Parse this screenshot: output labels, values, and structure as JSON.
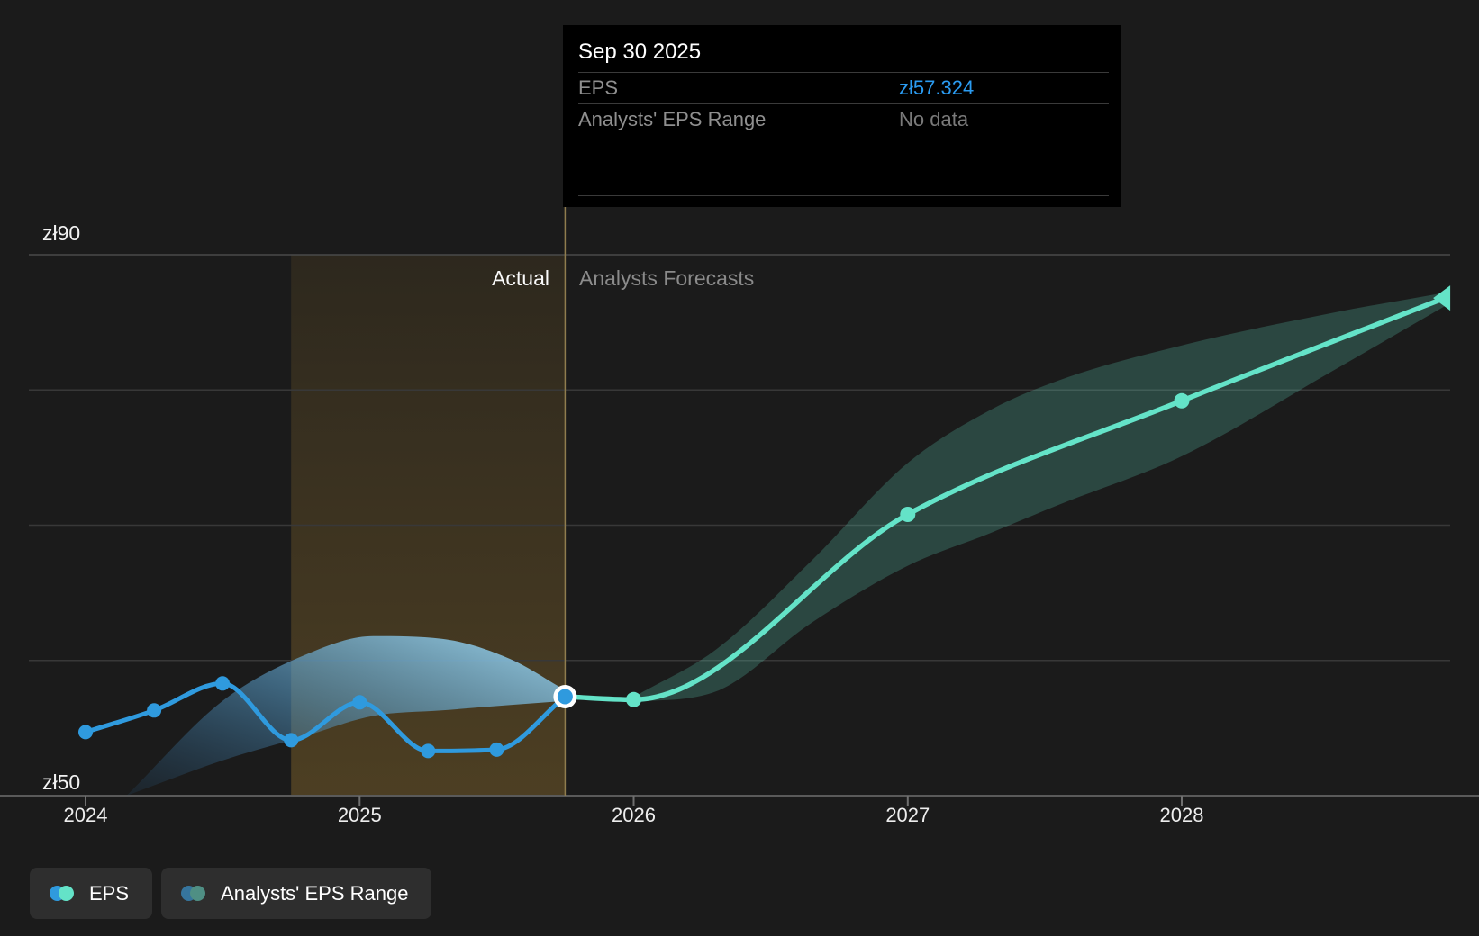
{
  "tooltip": {
    "title": "Sep 30 2025",
    "rows": [
      {
        "label": "EPS",
        "value": "zł57.324",
        "value_color": "#2b9cf2"
      },
      {
        "label": "Analysts' EPS Range",
        "value": "No data",
        "value_color": "#7a7a7a"
      }
    ]
  },
  "phase": {
    "actual": "Actual",
    "forecast": "Analysts Forecasts"
  },
  "y_axis": {
    "top_label": "zł90",
    "bottom_label": "zł50"
  },
  "legend": [
    {
      "label": "EPS",
      "swatch_colors": [
        "#2f9ade",
        "#64e3c8"
      ]
    },
    {
      "label": "Analysts' EPS Range",
      "swatch_colors": [
        "#36759d",
        "#4f8f84"
      ]
    }
  ],
  "colors": {
    "background": "#1b1b1b",
    "grid": "#383838",
    "grid_top": "#4a4a4a",
    "axis_line": "#5a5a5a",
    "tick": "#6f6f6f",
    "divider": "#8f7c4e",
    "highlight_top": "rgba(205,155,55,0.10)",
    "highlight_bottom": "rgba(205,155,55,0.28)",
    "actual_blue": "#2f9ade",
    "forecast_mint": "#64e3c8",
    "band_teal": "rgba(100,226,200,0.22)",
    "band_blue_start": "rgba(40,100,150,0.12)",
    "band_blue_mid": "rgba(90,160,205,0.55)",
    "band_blue_end": "rgba(150,210,240,0.88)"
  },
  "chart_data": {
    "type": "line",
    "title": "EPS actual vs analysts forecast",
    "currency_symbol": "zł",
    "x_ticks": [
      2024,
      2025,
      2026,
      2027,
      2028
    ],
    "x_range": [
      2023.8,
      2028.98
    ],
    "ylim": [
      50,
      90
    ],
    "y_gridline_values": [
      90,
      80,
      70,
      60,
      50
    ],
    "divider_x": 2025.75,
    "highlight_span": [
      2024.75,
      2025.75
    ],
    "selected_point": {
      "date": "Sep 30 2025",
      "x": 2025.75,
      "value": 57.324
    },
    "series": [
      {
        "name": "EPS",
        "kind": "actual",
        "color": "#2f9ade",
        "x": [
          2024.0,
          2024.25,
          2024.5,
          2024.75,
          2025.0,
          2025.25,
          2025.5,
          2025.75
        ],
        "values": [
          54.7,
          56.3,
          58.3,
          54.1,
          56.9,
          53.3,
          53.4,
          57.324
        ]
      },
      {
        "name": "EPS forecast",
        "kind": "forecast",
        "color": "#64e3c8",
        "x": [
          2025.75,
          2026.0,
          2027.0,
          2028.0,
          2028.96
        ],
        "values": [
          57.324,
          57.1,
          70.8,
          79.2,
          86.8
        ],
        "marker_x": [
          2026.0,
          2027.0,
          2028.0
        ]
      }
    ],
    "bands": [
      {
        "name": "Analysts' EPS Range (historical)",
        "fill": "gradient-blue",
        "x": [
          2024.15,
          2024.5,
          2024.8,
          2025.05,
          2025.3,
          2025.55,
          2025.75
        ],
        "high": [
          50.0,
          57.0,
          60.4,
          61.8,
          61.6,
          60.1,
          57.8
        ],
        "low": [
          50.0,
          52.6,
          54.4,
          55.9,
          56.3,
          56.7,
          57.0
        ]
      },
      {
        "name": "Analysts' EPS Range (forecast)",
        "fill": "teal",
        "x": [
          2026.0,
          2026.3,
          2026.65,
          2027.0,
          2027.3,
          2027.55,
          2028.0,
          2028.55,
          2028.96
        ],
        "high": [
          57.3,
          60.8,
          67.4,
          74.6,
          78.5,
          80.7,
          83.3,
          85.7,
          87.2
        ],
        "low": [
          56.9,
          57.7,
          62.8,
          67.0,
          69.4,
          71.5,
          75.1,
          81.4,
          86.2
        ]
      }
    ]
  }
}
